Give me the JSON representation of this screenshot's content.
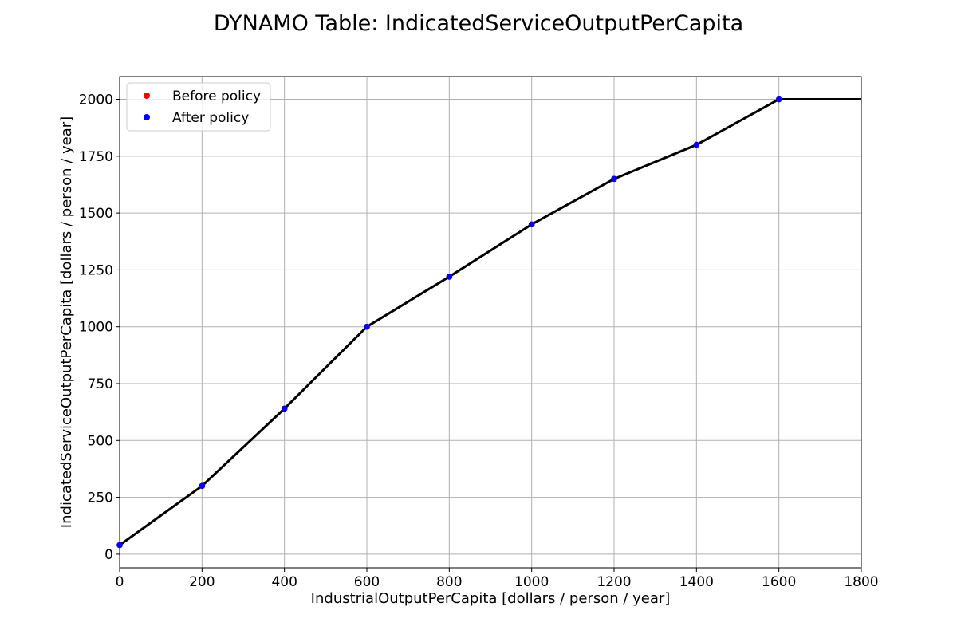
{
  "chart_data": {
    "type": "line",
    "title": "DYNAMO Table: IndicatedServiceOutputPerCapita",
    "xlabel": "IndustrialOutputPerCapita [dollars / person / year]",
    "ylabel": "IndicatedServiceOutputPerCapita [dollars / person / year]",
    "xlim": [
      0,
      1800
    ],
    "ylim": [
      -60,
      2100
    ],
    "xticks": [
      0,
      200,
      400,
      600,
      800,
      1000,
      1200,
      1400,
      1600,
      1800
    ],
    "yticks": [
      0,
      250,
      500,
      750,
      1000,
      1250,
      1500,
      1750,
      2000
    ],
    "grid": true,
    "legend_position": "top-left",
    "curve": {
      "color": "#000000",
      "x": [
        0,
        200,
        400,
        600,
        800,
        1000,
        1200,
        1400,
        1600,
        1800
      ],
      "y": [
        40,
        300,
        640,
        1000,
        1220,
        1450,
        1650,
        1800,
        2000,
        2000
      ]
    },
    "series": [
      {
        "name": "Before policy",
        "color": "#ff0000",
        "marker": "dot",
        "x": [
          0,
          200,
          400,
          600,
          800,
          1000,
          1200,
          1400,
          1600
        ],
        "y": [
          40,
          300,
          640,
          1000,
          1220,
          1450,
          1650,
          1800,
          2000
        ]
      },
      {
        "name": "After policy",
        "color": "#0000ff",
        "marker": "dot",
        "x": [
          0,
          200,
          400,
          600,
          800,
          1000,
          1200,
          1400,
          1600
        ],
        "y": [
          40,
          300,
          640,
          1000,
          1220,
          1450,
          1650,
          1800,
          2000
        ]
      }
    ]
  }
}
